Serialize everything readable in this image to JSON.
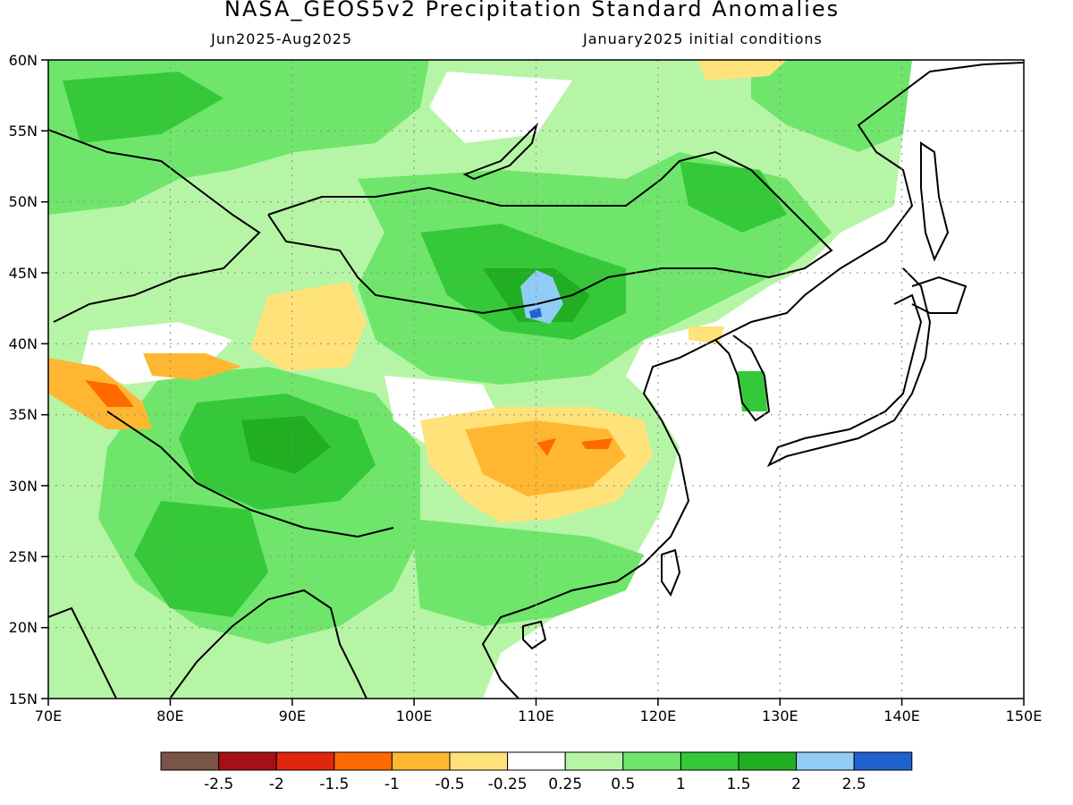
{
  "header": {
    "title": "NASA_GEOS5v2 Precipitation Standard Anomalies",
    "period": "Jun2025-Aug2025",
    "init": "January2025 initial conditions"
  },
  "axes": {
    "lon_labels": [
      "70E",
      "80E",
      "90E",
      "100E",
      "110E",
      "120E",
      "130E",
      "140E",
      "150E"
    ],
    "lat_labels": [
      "60N",
      "55N",
      "50N",
      "45N",
      "40N",
      "35N",
      "30N",
      "25N",
      "20N",
      "15N"
    ]
  },
  "colorbar": {
    "colors": [
      "#7a5446",
      "#a50f15",
      "#e0260f",
      "#ff6a00",
      "#ffb732",
      "#ffe27a",
      "#ffffff",
      "#b6f5a6",
      "#6fe66b",
      "#35c93a",
      "#22ae22",
      "#90cdf4",
      "#1f62d0"
    ],
    "labels": [
      "-2.5",
      "-2",
      "-1.5",
      "-1",
      "-0.5",
      "-0.25",
      "0.25",
      "0.5",
      "1",
      "1.5",
      "2",
      "2.5"
    ]
  },
  "map": {
    "lon_range": [
      70,
      150
    ],
    "lat_range": [
      15,
      60
    ],
    "grid": "dotted",
    "dominant_pattern": "positive anomalies (green) over most of the continent; negative anomaly (orange) centered over central-eastern China"
  }
}
